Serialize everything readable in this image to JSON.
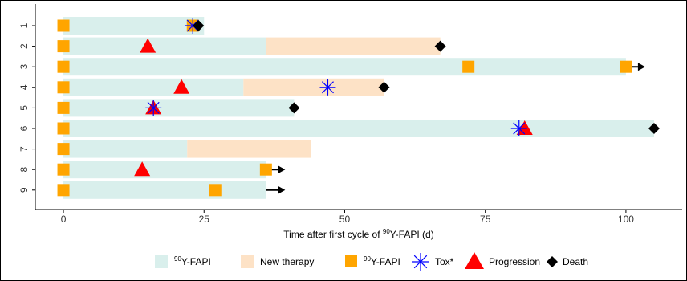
{
  "chart_data": {
    "type": "swimmer",
    "xlabel_parts": [
      "Time after first cycle of ",
      "90",
      "Y-FAPI (d)"
    ],
    "xlim": [
      -5,
      110
    ],
    "xticks": [
      0,
      25,
      50,
      75,
      100
    ],
    "patients": [
      "1",
      "2",
      "3",
      "4",
      "5",
      "6",
      "7",
      "8",
      "9"
    ],
    "bars": [
      {
        "patient": "1",
        "fapi_end": 25,
        "therapy_start": null,
        "therapy_end": null
      },
      {
        "patient": "2",
        "fapi_end": 36,
        "therapy_start": 36,
        "therapy_end": 67
      },
      {
        "patient": "3",
        "fapi_end": 100,
        "therapy_start": null,
        "therapy_end": null
      },
      {
        "patient": "4",
        "fapi_end": 32,
        "therapy_start": 32,
        "therapy_end": 57
      },
      {
        "patient": "5",
        "fapi_end": 41,
        "therapy_start": null,
        "therapy_end": null
      },
      {
        "patient": "6",
        "fapi_end": 105,
        "therapy_start": null,
        "therapy_end": null
      },
      {
        "patient": "7",
        "fapi_end": 22,
        "therapy_start": 22,
        "therapy_end": 44
      },
      {
        "patient": "8",
        "fapi_end": 36,
        "therapy_start": null,
        "therapy_end": null
      },
      {
        "patient": "9",
        "fapi_end": 36,
        "therapy_start": null,
        "therapy_end": null
      }
    ],
    "cycles": [
      {
        "patient": "1",
        "x": 0
      },
      {
        "patient": "1",
        "x": 23
      },
      {
        "patient": "2",
        "x": 0
      },
      {
        "patient": "3",
        "x": 0
      },
      {
        "patient": "3",
        "x": 72
      },
      {
        "patient": "3",
        "x": 100
      },
      {
        "patient": "4",
        "x": 0
      },
      {
        "patient": "5",
        "x": 0
      },
      {
        "patient": "6",
        "x": 0
      },
      {
        "patient": "7",
        "x": 0
      },
      {
        "patient": "8",
        "x": 0
      },
      {
        "patient": "8",
        "x": 36
      },
      {
        "patient": "9",
        "x": 0
      },
      {
        "patient": "9",
        "x": 27
      }
    ],
    "tox": [
      {
        "patient": "1",
        "x": 23
      },
      {
        "patient": "4",
        "x": 47
      },
      {
        "patient": "5",
        "x": 16
      },
      {
        "patient": "6",
        "x": 81
      }
    ],
    "progression": [
      {
        "patient": "2",
        "x": 15
      },
      {
        "patient": "4",
        "x": 21
      },
      {
        "patient": "5",
        "x": 16
      },
      {
        "patient": "6",
        "x": 82
      },
      {
        "patient": "8",
        "x": 14
      }
    ],
    "death": [
      {
        "patient": "1",
        "x": 24
      },
      {
        "patient": "2",
        "x": 67
      },
      {
        "patient": "4",
        "x": 57
      },
      {
        "patient": "5",
        "x": 41
      },
      {
        "patient": "6",
        "x": 105
      }
    ],
    "ongoing": [
      {
        "patient": "3",
        "x": 100
      },
      {
        "patient": "8",
        "x": 36
      },
      {
        "patient": "9",
        "x": 36
      }
    ],
    "legend": {
      "placement": "bottom",
      "fapi_parts": [
        "90",
        "Y-FAPI"
      ],
      "new_therapy": "New therapy",
      "cycle_parts": [
        "90",
        "Y-FAPI"
      ],
      "tox": "Tox*",
      "progression": "Progression",
      "death": "Death"
    },
    "colors": {
      "fapi_bar": "#d9efec",
      "therapy_bar": "#fde2c6",
      "cycle": "#ffa500",
      "tox": "#0000ff",
      "progression": "#ff0000",
      "death": "#000000",
      "arrow": "#000000"
    }
  }
}
